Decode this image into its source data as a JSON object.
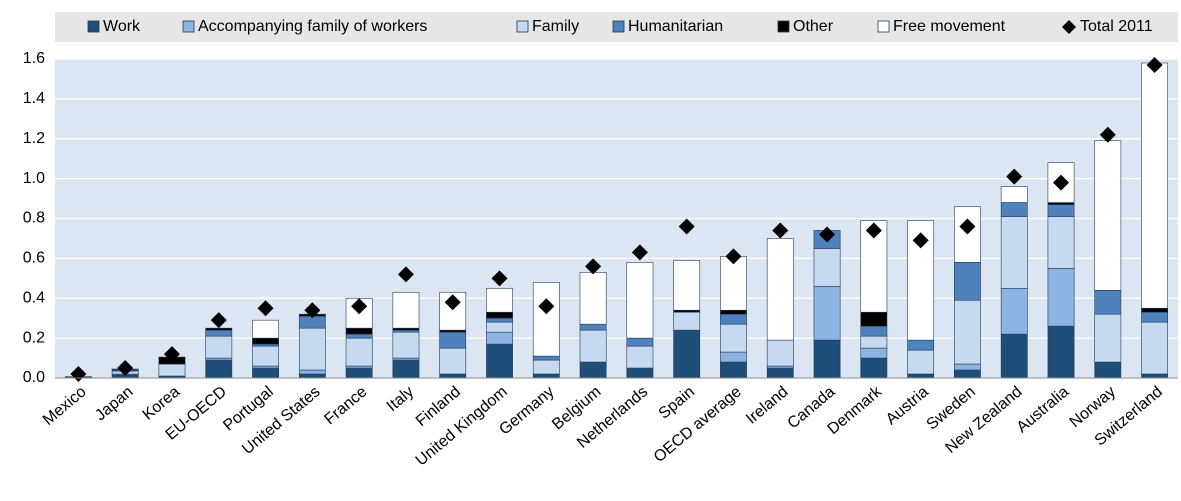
{
  "chart_data": {
    "type": "bar",
    "stacked": true,
    "categories": [
      "Mexico",
      "Japan",
      "Korea",
      "EU-OECD",
      "Portugal",
      "United States",
      "France",
      "Italy",
      "Finland",
      "United Kingdom",
      "Germany",
      "Belgium",
      "Netherlands",
      "Spain",
      "OECD average",
      "Ireland",
      "Canada",
      "Denmark",
      "Austria",
      "Sweden",
      "New Zealand",
      "Australia",
      "Norway",
      "Switzerland"
    ],
    "series": [
      {
        "name": "Work",
        "color": "#1f4e79",
        "values": [
          0.003,
          0.015,
          0.01,
          0.09,
          0.05,
          0.02,
          0.05,
          0.09,
          0.02,
          0.17,
          0.02,
          0.08,
          0.05,
          0.24,
          0.08,
          0.05,
          0.19,
          0.1,
          0.02,
          0.04,
          0.22,
          0.26,
          0.08,
          0.02
        ]
      },
      {
        "name": "Accompanying family of workers",
        "color": "#8db3e2",
        "values": [
          0,
          0.005,
          0,
          0.01,
          0.01,
          0.02,
          0.01,
          0.01,
          0,
          0.06,
          0,
          0,
          0,
          0,
          0.05,
          0.01,
          0.27,
          0.05,
          0,
          0.03,
          0.23,
          0.29,
          0,
          0
        ]
      },
      {
        "name": "Family",
        "color": "#c6d9f1",
        "values": [
          0.005,
          0.015,
          0.06,
          0.11,
          0.1,
          0.21,
          0.14,
          0.13,
          0.13,
          0.05,
          0.07,
          0.16,
          0.11,
          0.09,
          0.14,
          0.13,
          0.19,
          0.06,
          0.12,
          0.32,
          0.36,
          0.26,
          0.24,
          0.26
        ]
      },
      {
        "name": "Humanitarian",
        "color": "#4f81bd",
        "values": [
          0,
          0.005,
          0,
          0.03,
          0.01,
          0.06,
          0.02,
          0.01,
          0.08,
          0.02,
          0.02,
          0.03,
          0.04,
          0,
          0.05,
          0,
          0.09,
          0.05,
          0.05,
          0.19,
          0.07,
          0.06,
          0.12,
          0.05
        ]
      },
      {
        "name": "Other",
        "color": "#000000",
        "values": [
          0,
          0.002,
          0.035,
          0.01,
          0.03,
          0.01,
          0.03,
          0.01,
          0.01,
          0.03,
          0,
          0,
          0,
          0.01,
          0.02,
          0,
          0,
          0.07,
          0,
          0,
          0,
          0.01,
          0,
          0.02
        ]
      },
      {
        "name": "Free movement",
        "color": "#ffffff",
        "values": [
          0,
          0.003,
          0,
          0,
          0.09,
          0,
          0.15,
          0.18,
          0.19,
          0.12,
          0.37,
          0.26,
          0.38,
          0.25,
          0.27,
          0.51,
          0,
          0.46,
          0.6,
          0.28,
          0.08,
          0.2,
          0.75,
          1.23
        ]
      }
    ],
    "markers": {
      "name": "Total 2011",
      "color": "#000000",
      "values": [
        0.02,
        0.05,
        0.12,
        0.29,
        0.35,
        0.34,
        0.36,
        0.52,
        0.38,
        0.5,
        0.36,
        0.56,
        0.63,
        0.76,
        0.61,
        0.74,
        0.72,
        0.74,
        0.69,
        0.76,
        1.01,
        0.98,
        1.22,
        1.57
      ]
    },
    "ylim": [
      0,
      1.6
    ],
    "yticks": [
      {
        "value": 0,
        "label": "0.0"
      },
      0.2,
      0.4,
      0.6,
      0.8,
      {
        "value": 1,
        "label": "1.0"
      },
      1.2,
      1.4,
      1.6
    ],
    "grid": true,
    "background": "#dce6f2"
  }
}
